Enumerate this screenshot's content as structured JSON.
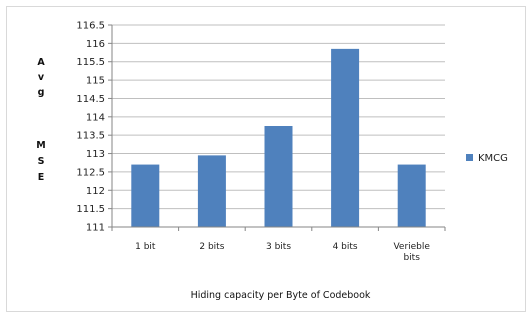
{
  "chart_data": {
    "type": "bar",
    "categories": [
      "1 bit",
      "2 bits",
      "3 bits",
      "4 bits",
      "Verieble bits"
    ],
    "series": [
      {
        "name": "KMCG",
        "values": [
          112.7,
          112.95,
          113.75,
          115.85,
          112.7
        ]
      }
    ],
    "xlabel": "Hiding capacity per Byte of Codebook",
    "ylabel_letters": [
      "A",
      "v",
      "g",
      "M",
      "S",
      "E"
    ],
    "ylim": [
      111,
      116.5
    ],
    "yticks": [
      "111",
      "111.5",
      "112",
      "112.5",
      "113",
      "113.5",
      "114",
      "114.5",
      "115",
      "115.5",
      "116",
      "116.5"
    ],
    "grid": true,
    "legend_position": "right",
    "colors": {
      "bar": "#4f81bd",
      "grid": "#bfbfbf",
      "axis": "#868686"
    }
  }
}
